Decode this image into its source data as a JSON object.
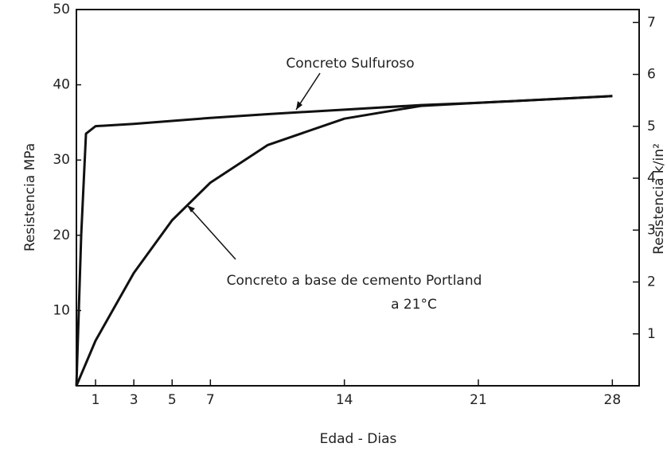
{
  "chart_data": {
    "type": "line",
    "x_label": "Edad - Dias",
    "y_label": "Resistencia MPa",
    "y2_label": "Resistencia  k/in²",
    "x": [
      0,
      0.25,
      0.5,
      1,
      3,
      5,
      7,
      10,
      14,
      18,
      21,
      28
    ],
    "series": [
      {
        "name": "Concreto Sulfuroso",
        "color": "#111111",
        "values": [
          0,
          20,
          33.5,
          34.5,
          34.8,
          35.2,
          35.6,
          36.1,
          36.7,
          37.3,
          37.6,
          38.5
        ]
      },
      {
        "name": "Concreto a base de cemento Portland",
        "color": "#111111",
        "values": [
          0,
          1.5,
          3,
          6,
          15,
          22,
          27,
          32,
          35.5,
          37.2,
          37.6,
          38.5
        ]
      }
    ],
    "annotations": [
      "a 21°C"
    ],
    "xlim": [
      0,
      29.4
    ],
    "xticks": [
      1,
      3,
      5,
      7,
      14,
      21,
      28
    ],
    "ylim": [
      0,
      50
    ],
    "yticks": [
      10,
      20,
      30,
      40,
      50
    ],
    "y2lim": [
      0,
      7.25
    ],
    "y2ticks": [
      1,
      2,
      3,
      4,
      5,
      6,
      7
    ],
    "grid": false
  }
}
